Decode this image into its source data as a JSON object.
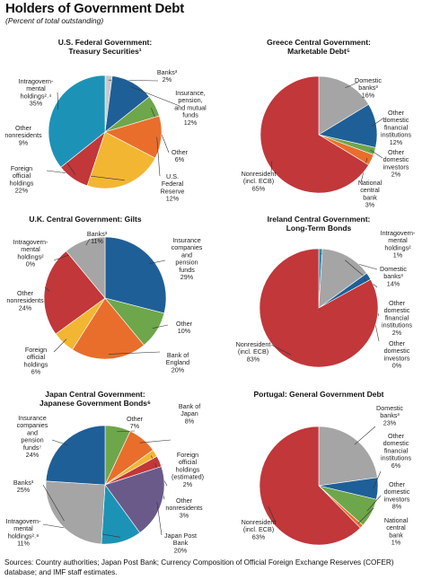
{
  "title": "Holders of Government Debt",
  "subtitle": "(Percent of total outstanding)",
  "source": "Sources: Country authorities; Japan Post Bank; Currency Composition of Official Foreign Exchange Reserves (COFER) database; and IMF staff estimates.",
  "colors": {
    "teal": "#1c93b6",
    "gray_light": "#c9c9c9",
    "blue_dark": "#1f5f97",
    "green": "#6ea64b",
    "orange": "#e96e2b",
    "yellow": "#f2b632",
    "red": "#c1373a",
    "gray": "#a5a5a5",
    "violet": "#6a5a8a",
    "leader": "#333333"
  },
  "chart_data": [
    {
      "type": "pie",
      "title": [
        "U.S. Federal Government:",
        "Treasury Securities¹"
      ],
      "slices": [
        {
          "label": [
            "Banks³",
            "2%"
          ],
          "value": 2,
          "color": "#c9c9c9"
        },
        {
          "label": [
            "Insurance,",
            "pension,",
            "and mutual",
            "funds",
            "12%"
          ],
          "value": 12,
          "color": "#1f5f97"
        },
        {
          "label": [
            "Other",
            "6%"
          ],
          "value": 6,
          "color": "#6ea64b"
        },
        {
          "label": [
            "U.S.",
            "Federal",
            "Reserve",
            "12%"
          ],
          "value": 12,
          "color": "#e96e2b"
        },
        {
          "label": [
            "Foreign",
            "official",
            "holdings",
            "22%"
          ],
          "value": 22,
          "color": "#f2b632"
        },
        {
          "label": [
            "Other",
            "nonresidents",
            "9%"
          ],
          "value": 9,
          "color": "#c1373a"
        },
        {
          "label": [
            "Intragovern-",
            "mental",
            "holdings²˒⁴",
            "35%"
          ],
          "value": 35,
          "color": "#1c93b6"
        }
      ]
    },
    {
      "type": "pie",
      "title": [
        "Greece Central Government:",
        "Marketable Debt⁵"
      ],
      "slices": [
        {
          "label": [
            "Domestic",
            "banks³",
            "16%"
          ],
          "value": 16,
          "color": "#a5a5a5"
        },
        {
          "label": [
            "Other",
            "domestic",
            "financial",
            "institutions",
            "12%"
          ],
          "value": 12,
          "color": "#1f5f97"
        },
        {
          "label": [
            "Other",
            "domestic",
            "investors",
            "2%"
          ],
          "value": 2,
          "color": "#6ea64b"
        },
        {
          "label": [
            "National",
            "central",
            "bank",
            "3%"
          ],
          "value": 3,
          "color": "#e96e2b"
        },
        {
          "label": [
            "Nonresident",
            "(incl. ECB)",
            "65%"
          ],
          "value": 65,
          "color": "#c1373a"
        }
      ]
    },
    {
      "type": "pie",
      "title": [
        "U.K. Central Government: Gilts"
      ],
      "slices": [
        {
          "label": [
            "Insurance",
            "companies",
            "and",
            "pension",
            "funds",
            "29%"
          ],
          "value": 29,
          "color": "#1f5f97"
        },
        {
          "label": [
            "Other",
            "10%"
          ],
          "value": 10,
          "color": "#6ea64b"
        },
        {
          "label": [
            "Bank of",
            "England",
            "20%"
          ],
          "value": 20,
          "color": "#e96e2b"
        },
        {
          "label": [
            "Foreign",
            "official",
            "holdings",
            "6%"
          ],
          "value": 6,
          "color": "#f2b632"
        },
        {
          "label": [
            "Other",
            "nonresidents",
            "24%"
          ],
          "value": 24,
          "color": "#c1373a"
        },
        {
          "label": [
            "Intragovern-",
            "mental",
            "holdings²",
            "0%"
          ],
          "value": 0,
          "color": "#1c93b6"
        },
        {
          "label": [
            "Banks³",
            "11%"
          ],
          "value": 11,
          "color": "#a5a5a5"
        }
      ]
    },
    {
      "type": "pie",
      "title": [
        "Ireland Central Government:",
        "Long-Term Bonds"
      ],
      "slices": [
        {
          "label": [
            "Intragovern-",
            "mental",
            "holdings²",
            "1%"
          ],
          "value": 1,
          "color": "#1c93b6"
        },
        {
          "label": [
            "Domestic",
            "banks³",
            "14%"
          ],
          "value": 14,
          "color": "#a5a5a5"
        },
        {
          "label": [
            "Other",
            "domestic",
            "financial",
            "institutions",
            "2%"
          ],
          "value": 2,
          "color": "#1f5f97"
        },
        {
          "label": [
            "Other",
            "domestic",
            "investors",
            "0%"
          ],
          "value": 0,
          "color": "#6ea64b"
        },
        {
          "label": [
            "Nonresident",
            "(incl. ECB)",
            "83%"
          ],
          "value": 83,
          "color": "#c1373a"
        }
      ]
    },
    {
      "type": "pie",
      "title": [
        "Japan Central Government:",
        "Japanese Government Bonds⁶"
      ],
      "slices": [
        {
          "label": [
            "Other",
            "7%"
          ],
          "value": 7,
          "color": "#6ea64b"
        },
        {
          "label": [
            "Bank of",
            "Japan",
            "8%"
          ],
          "value": 8,
          "color": "#e96e2b"
        },
        {
          "label": [
            "Foreign",
            "official",
            "holdings",
            "(estimated)",
            "2%"
          ],
          "value": 2,
          "color": "#f2b632"
        },
        {
          "label": [
            "Other",
            "nonresidents",
            "3%"
          ],
          "value": 3,
          "color": "#c1373a"
        },
        {
          "label": [
            "Japan Post",
            "Bank",
            "20%"
          ],
          "value": 20,
          "color": "#6a5a8a"
        },
        {
          "label": [
            "Intragovern-",
            "mental",
            "holdings²˒⁸",
            "11%"
          ],
          "value": 11,
          "color": "#1c93b6"
        },
        {
          "label": [
            "Banks³",
            "25%"
          ],
          "value": 25,
          "color": "#a5a5a5"
        },
        {
          "label": [
            "Insurance",
            "companies",
            "and",
            "pension",
            "funds⁷",
            "24%"
          ],
          "value": 24,
          "color": "#1f5f97"
        }
      ]
    },
    {
      "type": "pie",
      "title": [
        "Portugal: General Government Debt"
      ],
      "slices": [
        {
          "label": [
            "Domestic",
            "banks³",
            "23%"
          ],
          "value": 23,
          "color": "#a5a5a5"
        },
        {
          "label": [
            "Other",
            "domestic",
            "financial",
            "institutions",
            "6%"
          ],
          "value": 6,
          "color": "#1f5f97"
        },
        {
          "label": [
            "Other",
            "domestic",
            "investors",
            "8%"
          ],
          "value": 8,
          "color": "#6ea64b"
        },
        {
          "label": [
            "National",
            "central",
            "bank",
            "1%"
          ],
          "value": 1,
          "color": "#e96e2b"
        },
        {
          "label": [
            "Nonresident",
            "(incl. ECB)",
            "63%"
          ],
          "value": 63,
          "color": "#c1373a"
        }
      ]
    }
  ]
}
